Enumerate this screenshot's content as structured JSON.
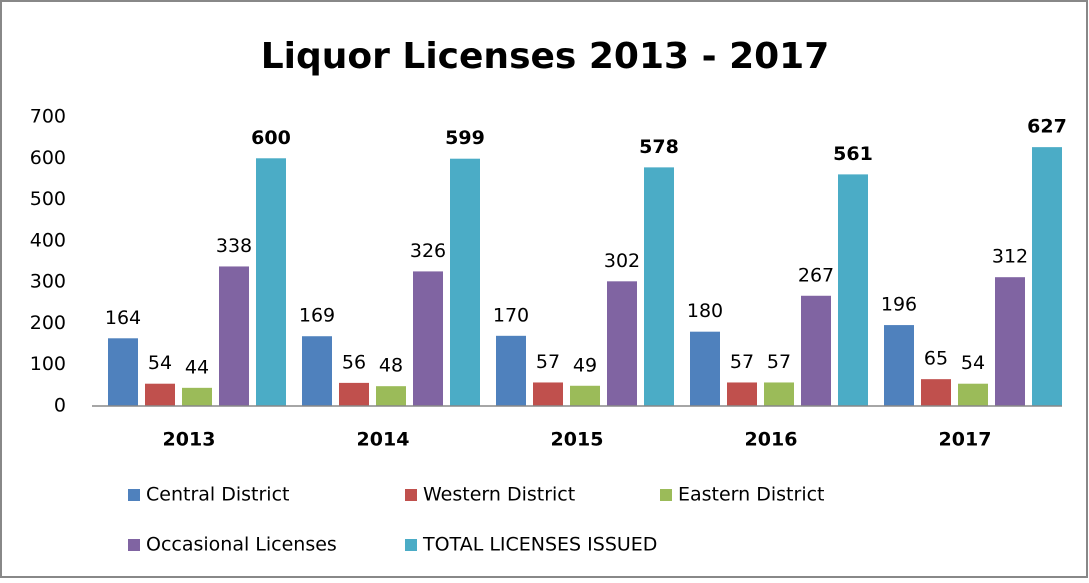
{
  "chart_data": {
    "type": "bar",
    "title": "Liquor Licenses 2013 - 2017",
    "categories": [
      "2013",
      "2014",
      "2015",
      "2016",
      "2017"
    ],
    "series": [
      {
        "name": "Central District",
        "color": "#4f81bd",
        "values": [
          164,
          169,
          170,
          180,
          196
        ]
      },
      {
        "name": "Western District",
        "color": "#c0504d",
        "values": [
          54,
          56,
          57,
          57,
          65
        ]
      },
      {
        "name": "Eastern District",
        "color": "#9bbb59",
        "values": [
          44,
          48,
          49,
          57,
          54
        ]
      },
      {
        "name": "Occasional Licenses",
        "color": "#8064a2",
        "values": [
          338,
          326,
          302,
          267,
          312
        ]
      },
      {
        "name": "TOTAL LICENSES ISSUED",
        "color": "#4bacc6",
        "values": [
          600,
          599,
          578,
          561,
          627
        ]
      }
    ],
    "ylim": [
      0,
      700
    ],
    "yticks": [
      0,
      100,
      200,
      300,
      400,
      500,
      600,
      700
    ],
    "grid": false,
    "legend": "bottom"
  }
}
